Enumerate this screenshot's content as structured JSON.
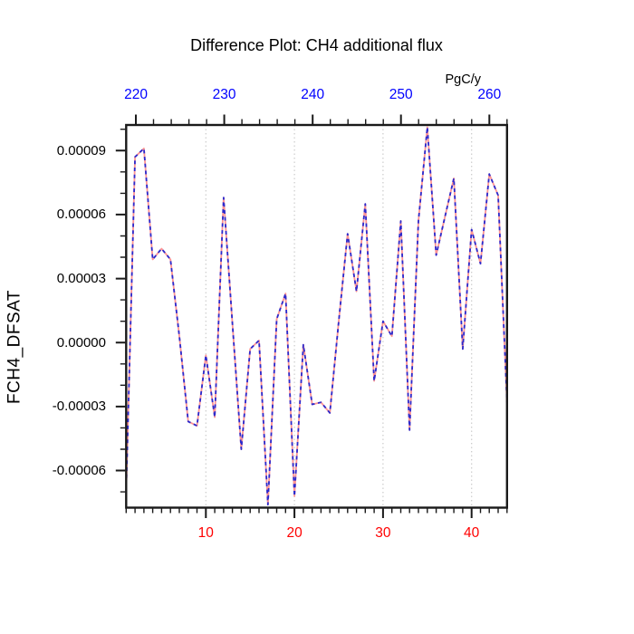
{
  "chart_data": {
    "type": "line",
    "title": "Difference Plot: CH4 additional flux",
    "ylabel": "FCH4_DFSAT",
    "x": [
      1,
      2,
      3,
      4,
      5,
      6,
      7,
      8,
      9,
      10,
      11,
      12,
      13,
      14,
      15,
      16,
      17,
      18,
      19,
      20,
      21,
      22,
      23,
      24,
      25,
      26,
      27,
      28,
      29,
      30,
      31,
      32,
      33,
      34,
      35,
      36,
      37,
      38,
      39,
      40,
      41,
      42,
      43,
      44
    ],
    "values": [
      -7e-05,
      8.7e-05,
      9.1e-05,
      3.9e-05,
      4.4e-05,
      3.9e-05,
      3e-06,
      -3.7e-05,
      -3.9e-05,
      -6e-06,
      -3.5e-05,
      6.8e-05,
      9e-06,
      -5e-05,
      -3e-06,
      1e-06,
      -7.6e-05,
      1.1e-05,
      2.3e-05,
      -7.2e-05,
      -1e-06,
      -2.9e-05,
      -2.8e-05,
      -3.3e-05,
      1e-05,
      5.1e-05,
      2.4e-05,
      6.5e-05,
      -1.8e-05,
      1e-05,
      3e-06,
      5.7e-05,
      -4.1e-05,
      5.7e-05,
      0.000101,
      4.1e-05,
      5.9e-05,
      7.7e-05,
      -3e-06,
      5.3e-05,
      3.7e-05,
      7.9e-05,
      6.9e-05,
      -2.8e-05
    ],
    "line_style": {
      "description": "two coincident curves: solid salmon line with dashed blue overlay",
      "base_color": "#ff9494",
      "base_style": "solid",
      "overlay_color": "#2a2ace",
      "overlay_style": "dashed"
    },
    "x_axis_bottom": {
      "label_color": "#ff0000",
      "major_ticks": [
        10,
        20,
        30,
        40
      ],
      "minor_step": 1,
      "range": [
        1,
        44
      ]
    },
    "x_axis_top": {
      "unit": "PgC/y",
      "label_color": "#0000ff",
      "major_ticks": [
        220,
        230,
        240,
        250,
        260
      ],
      "minor_step": 2,
      "range": [
        218.9,
        262.0
      ]
    },
    "y_axis": {
      "major_tick_labels": [
        "0.00009",
        "0.00006",
        "0.00003",
        "0.00000",
        "-0.00003",
        "-0.00006"
      ],
      "major_tick_values": [
        9e-05,
        6e-05,
        3e-05,
        0,
        -3e-05,
        -6e-05
      ],
      "minor_step": 1e-05,
      "ylim": [
        -7.74e-05,
        0.000102
      ]
    },
    "grid": {
      "vertical_dotted_at": [
        10,
        20,
        30,
        40
      ],
      "color": "#c8c8c8",
      "legend": "none"
    },
    "frame_color": "#1a1a1a"
  }
}
